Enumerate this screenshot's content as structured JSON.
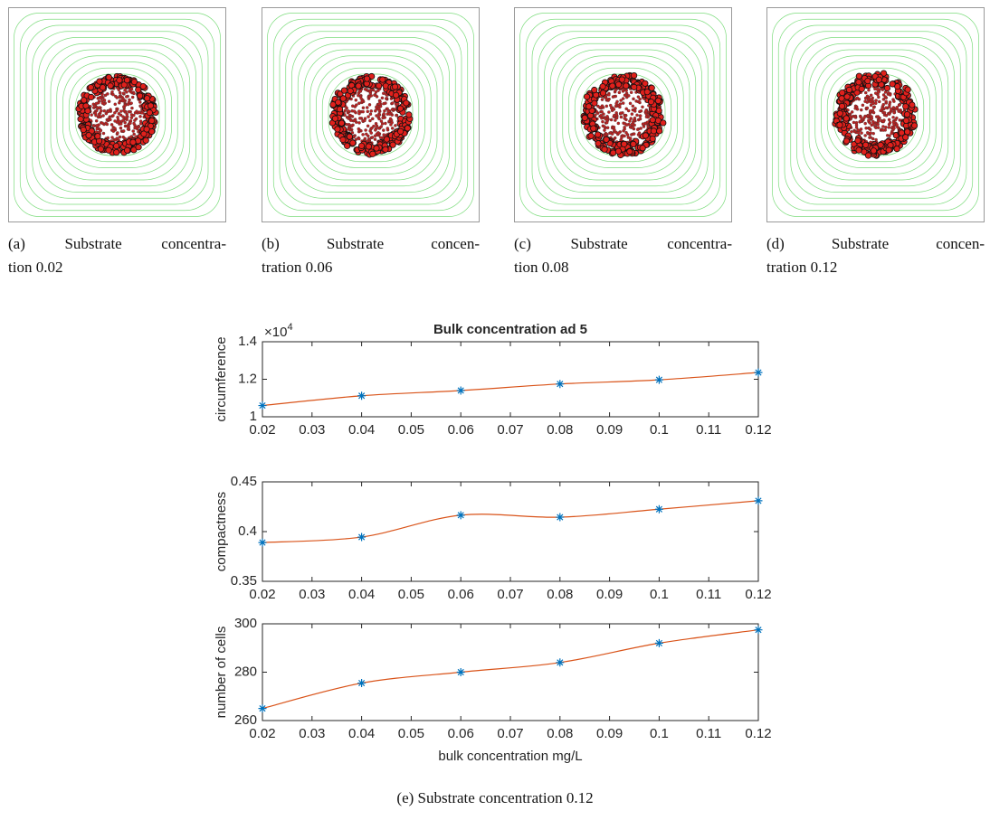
{
  "subfigures": [
    {
      "label": "(a)",
      "lines": [
        "Substrate concentra-",
        "tion 0.02"
      ]
    },
    {
      "label": "(b)",
      "lines": [
        "Substrate concen-",
        "tration 0.06"
      ]
    },
    {
      "label": "(c)",
      "lines": [
        "Substrate concentra-",
        "tion 0.08"
      ]
    },
    {
      "label": "(d)",
      "lines": [
        "Substrate concen-",
        "tration 0.12"
      ]
    }
  ],
  "chart_data": [
    {
      "type": "line",
      "title": "Bulk concentration ad 5",
      "ylabel": "circumference",
      "multiplier": "×10",
      "multiplier_exponent": "4",
      "x": [
        0.02,
        0.04,
        0.06,
        0.08,
        0.1,
        0.12
      ],
      "series": [
        {
          "color": "#d95319",
          "marker_color": "#0072bd",
          "values": [
            1.06,
            1.112,
            1.14,
            1.175,
            1.197,
            1.236
          ]
        }
      ],
      "xlim": [
        0.02,
        0.12
      ],
      "xticks": [
        0.02,
        0.03,
        0.04,
        0.05,
        0.06,
        0.07,
        0.08,
        0.09,
        0.1,
        0.11,
        0.12
      ],
      "ylim": [
        1,
        1.4
      ],
      "yticks": [
        1,
        1.2,
        1.4
      ]
    },
    {
      "type": "line",
      "ylabel": "compactness",
      "x": [
        0.02,
        0.04,
        0.06,
        0.08,
        0.1,
        0.12
      ],
      "series": [
        {
          "color": "#d95319",
          "marker_color": "#0072bd",
          "values": [
            0.389,
            0.3945,
            0.4165,
            0.4145,
            0.4225,
            0.431
          ]
        }
      ],
      "xlim": [
        0.02,
        0.12
      ],
      "xticks": [
        0.02,
        0.03,
        0.04,
        0.05,
        0.06,
        0.07,
        0.08,
        0.09,
        0.1,
        0.11,
        0.12
      ],
      "ylim": [
        0.35,
        0.45
      ],
      "yticks": [
        0.35,
        0.4,
        0.45
      ]
    },
    {
      "type": "line",
      "ylabel": "number of cells",
      "xlabel": "bulk concentration mg/L",
      "x": [
        0.02,
        0.04,
        0.06,
        0.08,
        0.1,
        0.12
      ],
      "series": [
        {
          "color": "#d95319",
          "marker_color": "#0072bd",
          "values": [
            265,
            275.5,
            280,
            284,
            292,
            297.5
          ]
        }
      ],
      "xlim": [
        0.02,
        0.12
      ],
      "xticks": [
        0.02,
        0.03,
        0.04,
        0.05,
        0.06,
        0.07,
        0.08,
        0.09,
        0.1,
        0.11,
        0.12
      ],
      "ylim": [
        260,
        300
      ],
      "yticks": [
        260,
        280,
        300
      ]
    }
  ],
  "caption": {
    "label": "(e)",
    "text": "Substrate concentration 0.12"
  }
}
